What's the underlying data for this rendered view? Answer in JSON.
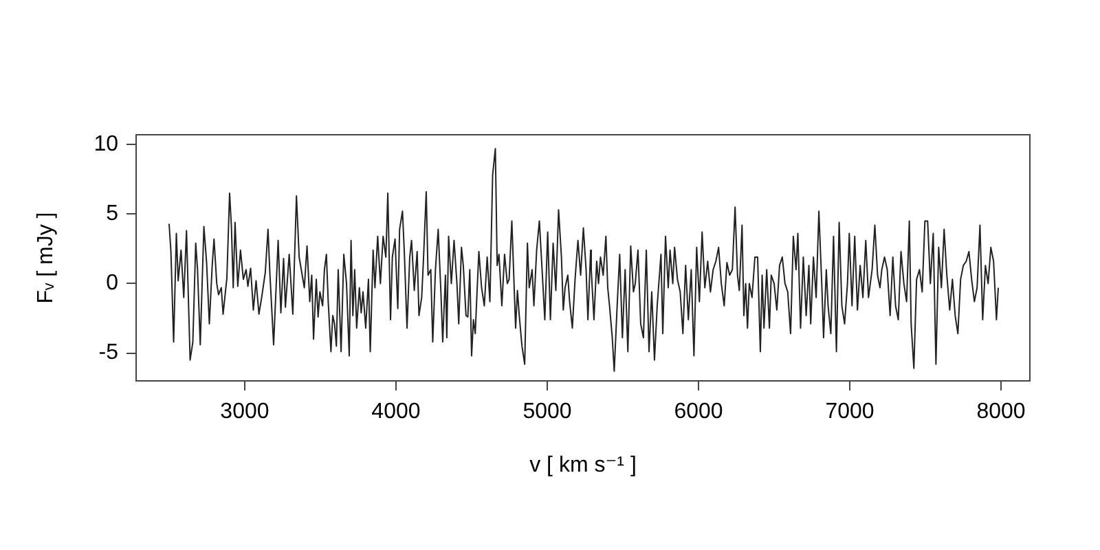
{
  "chart_data": {
    "type": "line",
    "xlabel": "v [ km s⁻¹ ]",
    "ylabel": "Fᵥ [ mJy ]",
    "xlim": [
      2282,
      8191
    ],
    "ylim": [
      -7,
      10.7
    ],
    "xticks": [
      3000,
      4000,
      5000,
      6000,
      7000,
      8000
    ],
    "yticks": [
      -5,
      0,
      5,
      10
    ],
    "marker": "none",
    "line_style": "solid",
    "series": [
      {
        "color": "#222222",
        "x": [
          2500,
          2512,
          2530,
          2548,
          2560,
          2579,
          2597,
          2615,
          2639,
          2657,
          2676,
          2688,
          2706,
          2730,
          2748,
          2766,
          2785,
          2797,
          2815,
          2827,
          2845,
          2857,
          2882,
          2900,
          2912,
          2924,
          2936,
          2954,
          2972,
          2991,
          3009,
          3021,
          3039,
          3057,
          3075,
          3094,
          3112,
          3136,
          3154,
          3166,
          3191,
          3221,
          3239,
          3257,
          3269,
          3294,
          3318,
          3342,
          3360,
          3394,
          3412,
          3430,
          3443,
          3455,
          3473,
          3485,
          3497,
          3515,
          3527,
          3540,
          3552,
          3570,
          3582,
          3594,
          3606,
          3618,
          3637,
          3655,
          3673,
          3691,
          3703,
          3715,
          3727,
          3740,
          3758,
          3770,
          3782,
          3800,
          3818,
          3830,
          3849,
          3861,
          3879,
          3897,
          3915,
          3933,
          3946,
          3964,
          3976,
          3994,
          4012,
          4024,
          4043,
          4055,
          4073,
          4091,
          4103,
          4121,
          4140,
          4152,
          4170,
          4182,
          4200,
          4212,
          4230,
          4243,
          4261,
          4279,
          4297,
          4309,
          4327,
          4336,
          4348,
          4366,
          4384,
          4403,
          4415,
          4433,
          4445,
          4463,
          4475,
          4488,
          4500,
          4512,
          4524,
          4536,
          4548,
          4566,
          4584,
          4603,
          4621,
          4639,
          4657,
          4669,
          4681,
          4700,
          4718,
          4736,
          4748,
          4766,
          4791,
          4803,
          4815,
          4833,
          4851,
          4869,
          4881,
          4900,
          4912,
          4930,
          4948,
          4966,
          4984,
          5003,
          5021,
          5039,
          5057,
          5075,
          5094,
          5106,
          5118,
          5136,
          5148,
          5166,
          5184,
          5203,
          5221,
          5239,
          5257,
          5269,
          5287,
          5291,
          5309,
          5327,
          5339,
          5352,
          5370,
          5388,
          5400,
          5412,
          5430,
          5443,
          5461,
          5479,
          5497,
          5515,
          5533,
          5552,
          5570,
          5582,
          5600,
          5618,
          5636,
          5655,
          5673,
          5691,
          5709,
          5727,
          5752,
          5764,
          5782,
          5800,
          5812,
          5830,
          5842,
          5861,
          5879,
          5897,
          5915,
          5933,
          5952,
          5970,
          5988,
          6006,
          6024,
          6042,
          6061,
          6079,
          6097,
          6115,
          6133,
          6151,
          6170,
          6188,
          6206,
          6224,
          6242,
          6258,
          6270,
          6288,
          6300,
          6312,
          6324,
          6336,
          6354,
          6373,
          6391,
          6409,
          6421,
          6433,
          6451,
          6469,
          6481,
          6500,
          6518,
          6536,
          6554,
          6572,
          6590,
          6609,
          6627,
          6645,
          6657,
          6675,
          6693,
          6712,
          6730,
          6742,
          6760,
          6778,
          6796,
          6815,
          6827,
          6845,
          6857,
          6875,
          6893,
          6912,
          6930,
          6948,
          6966,
          6985,
          6997,
          7015,
          7033,
          7051,
          7069,
          7087,
          7106,
          7124,
          7148,
          7166,
          7184,
          7200,
          7212,
          7230,
          7248,
          7267,
          7285,
          7303,
          7321,
          7339,
          7358,
          7376,
          7394,
          7406,
          7424,
          7442,
          7461,
          7479,
          7497,
          7515,
          7533,
          7552,
          7570,
          7588,
          7606,
          7624,
          7642,
          7661,
          7679,
          7697,
          7715,
          7733,
          7751,
          7770,
          7788,
          7806,
          7824,
          7842,
          7861,
          7879,
          7897,
          7915,
          7933,
          7951,
          7970,
          7982
        ],
        "values": [
          4.3,
          2.3,
          -4.2,
          3.6,
          0.2,
          2.4,
          -1,
          3.8,
          -5.5,
          -4.2,
          2.9,
          1,
          -4.4,
          4.1,
          1.5,
          -2.9,
          1.3,
          3.2,
          0,
          -0.8,
          -0.3,
          -2.2,
          0.4,
          6.5,
          4.1,
          -0.3,
          4.4,
          -0.2,
          2.4,
          0.3,
          1,
          -0.2,
          1.1,
          -1.9,
          0.2,
          -2.2,
          -1,
          0.8,
          3.9,
          0.8,
          -4.4,
          3.1,
          -2.1,
          1.8,
          -1.7,
          2.1,
          -2.2,
          6.3,
          1.9,
          -0.3,
          2.7,
          -1.3,
          0.6,
          -4,
          0.3,
          -2.4,
          -0.6,
          -1.6,
          1,
          2.1,
          -1.3,
          -4.9,
          -2.3,
          -2.9,
          -4.5,
          1,
          -4.9,
          2.1,
          0,
          -5.2,
          3.1,
          -2.3,
          1,
          -3.2,
          -0.3,
          -2.1,
          -0.6,
          -3.2,
          0.3,
          -4.9,
          2.4,
          -0.3,
          3.4,
          0,
          3.4,
          1.9,
          6.5,
          -2.6,
          1.9,
          3.2,
          -1.8,
          3.9,
          5.2,
          2.3,
          -3.2,
          1.9,
          3.1,
          -0.5,
          2.3,
          -2.3,
          -1,
          1.8,
          6.6,
          0.6,
          1,
          -4.2,
          1,
          3.9,
          -0.6,
          -4.2,
          0.6,
          -3.9,
          3.4,
          0,
          3.1,
          0,
          -2.9,
          2.6,
          1.3,
          -2.3,
          -2.4,
          1,
          -5.2,
          -2.6,
          -3.6,
          -0.6,
          2.3,
          -0.3,
          -1.6,
          1.9,
          -1.3,
          7.8,
          9.7,
          1.3,
          2.1,
          -1.6,
          2.1,
          0,
          0.3,
          4.5,
          -3.2,
          -0.5,
          -2.3,
          -4.5,
          -5.8,
          2.9,
          -0.3,
          1,
          -1.6,
          2.4,
          4.5,
          1,
          -2.6,
          3.7,
          -2.6,
          2.9,
          -0.5,
          5.3,
          1.9,
          -1.9,
          -0.3,
          0.6,
          -1.3,
          -3.2,
          0.3,
          3.1,
          0.6,
          4,
          1,
          -2.6,
          2.4,
          1,
          -2.6,
          1.6,
          0,
          1.9,
          0.6,
          3.4,
          -0.3,
          -1.6,
          -3.9,
          -6.3,
          -1.9,
          2.1,
          -3.9,
          1,
          -4.9,
          2.7,
          -0.6,
          0,
          2.4,
          -2.9,
          -3.9,
          2.4,
          -4.9,
          -0.6,
          -5.5,
          -1.6,
          2.1,
          -3.6,
          3.4,
          -0.3,
          2.4,
          0,
          2.6,
          0.3,
          -0.6,
          -3.6,
          1.3,
          -2.6,
          1,
          -5.2,
          2.6,
          -1.3,
          3.7,
          -0.3,
          1.6,
          -0.6,
          1,
          1.6,
          2.6,
          0,
          -1.6,
          1.5,
          0.6,
          1,
          5.5,
          0.6,
          -0.5,
          4.2,
          -2.3,
          0,
          -3.2,
          0,
          -1,
          1.9,
          1.9,
          -4.9,
          0.6,
          -3.2,
          1,
          -3.2,
          0.6,
          0,
          -1.9,
          1.3,
          1.9,
          0,
          -0.6,
          -3.6,
          3.4,
          1,
          3.6,
          -3.2,
          1.9,
          -2.3,
          1.3,
          -2.9,
          1.9,
          -1,
          5.2,
          0,
          -3.9,
          1,
          -1.6,
          -3.6,
          3.4,
          -4.9,
          4.4,
          -1.6,
          -2.9,
          0,
          3.6,
          -1.6,
          3.4,
          -1.9,
          1.3,
          -1,
          3.1,
          -1,
          1,
          4.2,
          0.6,
          -0.3,
          1,
          1.9,
          1,
          -2.3,
          1.9,
          -1.6,
          -2.6,
          2.3,
          0,
          -1.3,
          4.5,
          -2.9,
          -6.1,
          0.3,
          1,
          -0.6,
          4.5,
          4.5,
          0,
          3.6,
          -5.8,
          2.6,
          -0.3,
          3.9,
          0.6,
          -1.9,
          0.3,
          -2.3,
          -3.6,
          0.3,
          1.3,
          1.6,
          2.3,
          0.3,
          -1.3,
          -0.3,
          4.2,
          -2.6,
          1.3,
          0,
          2.6,
          1.6,
          -2.6,
          -0.3
        ]
      }
    ]
  }
}
